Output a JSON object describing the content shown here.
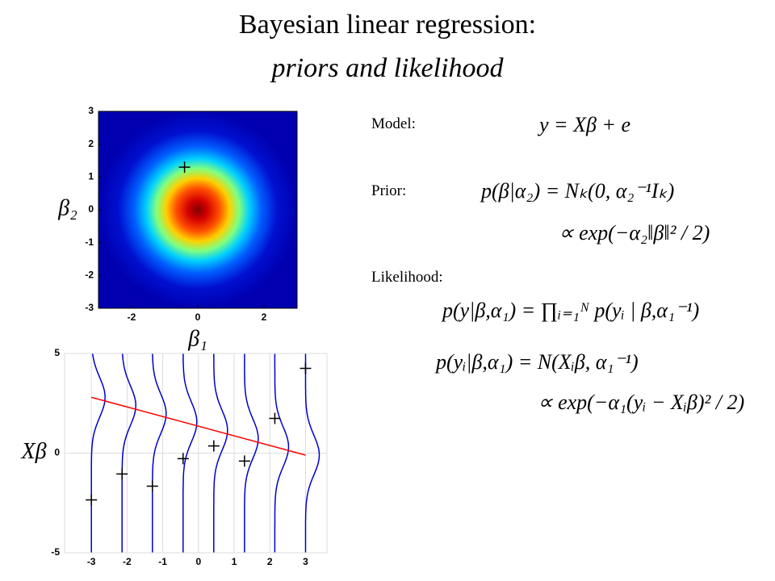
{
  "header": {
    "title": "Bayesian linear regression:",
    "subtitle": "priors and likelihood"
  },
  "chart_data": [
    {
      "type": "heatmap",
      "xlabel": "β₁",
      "ylabel": "β₂",
      "xlim": [
        -3,
        3
      ],
      "ylim": [
        -3,
        3
      ],
      "xticks": [
        -2,
        0,
        2
      ],
      "yticks": [
        -3,
        -2,
        -1,
        0,
        1,
        2,
        3
      ],
      "markers": {
        "x": [
          -0.4
        ],
        "y": [
          1.3
        ],
        "color": "#000000"
      }
    },
    {
      "type": "line",
      "ylabel": "Xβ",
      "grid": true,
      "xlim": [
        -3.75,
        3.6
      ],
      "ylim": [
        -5,
        5
      ],
      "xticks": [
        -3,
        -2,
        -1,
        0,
        1,
        2,
        3
      ],
      "yticks": [
        -5,
        0,
        5
      ],
      "series": [
        {
          "color": "#ff0000",
          "x": [
            -3,
            3
          ],
          "values": [
            2.8,
            -0.1
          ]
        }
      ],
      "curve_color": "#0000cc",
      "markers": {
        "x": [
          -3,
          -2.14,
          -1.29,
          -0.43,
          0.43,
          1.29,
          2.14,
          3
        ],
        "y": [
          -2.35,
          -1.05,
          -1.66,
          -0.28,
          0.36,
          -0.4,
          1.74,
          4.25
        ],
        "color": "#000000"
      }
    }
  ],
  "equations": {
    "model": {
      "label": "Model:",
      "lines": [
        "y = Xβ + e"
      ]
    },
    "prior": {
      "label": "Prior:",
      "lines": [
        "p(β|α₂) = Nₖ(0, α₂⁻¹Iₖ)",
        "∝ exp(−α₂‖β‖² / 2)"
      ]
    },
    "likelihood": {
      "label": "Likelihood:",
      "lines": [
        "p(y|β,α₁) = ∏ᵢ₌₁ᴺ p(yᵢ | β,α₁⁻¹)",
        "p(yᵢ|β,α₁) = N(Xᵢβ, α₁⁻¹)",
        "∝ exp(−α₁(yᵢ − Xᵢβ)² / 2)"
      ]
    }
  }
}
